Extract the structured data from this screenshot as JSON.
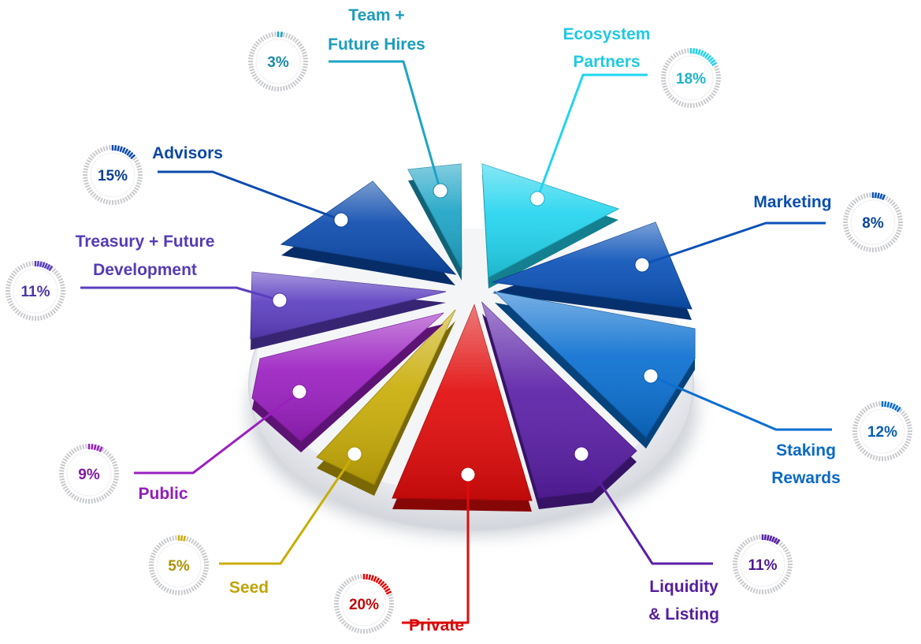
{
  "chart_data": {
    "type": "pie",
    "slices": [
      {
        "key": "ecosystem",
        "label_lines": [
          "Ecosystem",
          "Partners"
        ],
        "value": 18,
        "value_text": "18%",
        "color": "#22d4ee"
      },
      {
        "key": "marketing",
        "label_lines": [
          "Marketing"
        ],
        "value": 8,
        "value_text": "8%",
        "color": "#0b52b8"
      },
      {
        "key": "staking",
        "label_lines": [
          "Staking",
          "Rewards"
        ],
        "value": 12,
        "value_text": "12%",
        "color": "#0a6fd0"
      },
      {
        "key": "liquidity",
        "label_lines": [
          "Liquidity",
          "& Listing"
        ],
        "value": 11,
        "value_text": "11%",
        "color": "#5a1fa6"
      },
      {
        "key": "private",
        "label_lines": [
          "Private"
        ],
        "value": 20,
        "value_text": "20%",
        "color": "#e10b0b"
      },
      {
        "key": "seed",
        "label_lines": [
          "Seed"
        ],
        "value": 5,
        "value_text": "5%",
        "color": "#c9ad08"
      },
      {
        "key": "public",
        "label_lines": [
          "Public"
        ],
        "value": 9,
        "value_text": "9%",
        "color": "#9a1fc0"
      },
      {
        "key": "treasury",
        "label_lines": [
          "Treasury + Future",
          "Development"
        ],
        "value": 11,
        "value_text": "11%",
        "color": "#5b3ec0"
      },
      {
        "key": "advisors",
        "label_lines": [
          "Advisors"
        ],
        "value": 15,
        "value_text": "15%",
        "color": "#0c4bad"
      },
      {
        "key": "team",
        "label_lines": [
          "Team +",
          "Future Hires"
        ],
        "value": 3,
        "value_text": "3%",
        "color": "#1da4c6"
      }
    ]
  }
}
